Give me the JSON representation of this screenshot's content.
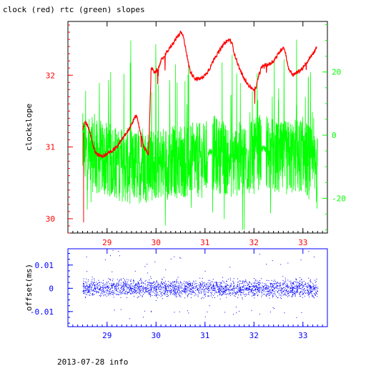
{
  "title": "clock (red) rtc (green) slopes",
  "footer": "2013-07-28 info",
  "colors": {
    "clock": "#ff0000",
    "rtc": "#00ff00",
    "offset": "#0000ff",
    "frame": "#000000"
  },
  "chart_data": [
    {
      "type": "line",
      "ylabel": "clockslope",
      "xlim": [
        28.2,
        33.5
      ],
      "x_ticks": [
        "29",
        "30",
        "31",
        "32",
        "33"
      ],
      "x_tick_values": [
        29,
        30,
        31,
        32,
        33
      ],
      "left_axis": {
        "ylim": [
          29.8,
          32.75
        ],
        "tick_values": [
          30,
          31,
          32
        ],
        "tick_labels": [
          "30",
          "31",
          "32"
        ]
      },
      "right_axis": {
        "ylim": [
          -31,
          36
        ],
        "tick_values": [
          -20,
          0,
          20
        ],
        "tick_labels": [
          "-20",
          "0",
          "20"
        ]
      },
      "series": [
        {
          "name": "clock",
          "axis": "left",
          "x": [
            28.5,
            28.52,
            28.55,
            28.6,
            28.65,
            28.7,
            28.75,
            28.8,
            28.85,
            28.9,
            28.95,
            29.0,
            29.1,
            29.2,
            29.3,
            29.4,
            29.5,
            29.55,
            29.6,
            29.65,
            29.7,
            29.75,
            29.8,
            29.85,
            29.9,
            29.92,
            29.95,
            30.0,
            30.05,
            30.1,
            30.2,
            30.3,
            30.4,
            30.5,
            30.55,
            30.6,
            30.65,
            30.7,
            30.8,
            30.9,
            31.0,
            31.1,
            31.2,
            31.3,
            31.4,
            31.5,
            31.55,
            31.6,
            31.7,
            31.8,
            31.9,
            32.0,
            32.05,
            32.1,
            32.15,
            32.2,
            32.3,
            32.4,
            32.5,
            32.55,
            32.6,
            32.65,
            32.7,
            32.8,
            32.9,
            33.0,
            33.1,
            33.2,
            33.25,
            33.28
          ],
          "y": [
            31.25,
            31.3,
            31.35,
            31.3,
            31.2,
            31.05,
            30.95,
            30.9,
            30.88,
            30.87,
            30.88,
            30.9,
            30.95,
            31.0,
            31.1,
            31.2,
            31.3,
            31.4,
            31.45,
            31.3,
            31.15,
            31.0,
            30.95,
            30.9,
            32.1,
            32.1,
            32.05,
            32.05,
            32.1,
            32.2,
            32.3,
            32.4,
            32.5,
            32.6,
            32.55,
            32.4,
            32.2,
            32.05,
            31.95,
            31.95,
            32.0,
            32.1,
            32.25,
            32.35,
            32.45,
            32.5,
            32.45,
            32.3,
            32.1,
            31.95,
            31.85,
            31.8,
            31.85,
            32.0,
            32.1,
            32.15,
            32.15,
            32.2,
            32.3,
            32.35,
            32.4,
            32.3,
            32.1,
            32.0,
            32.05,
            32.1,
            32.2,
            32.3,
            32.35,
            32.4
          ]
        },
        {
          "name": "rtc",
          "axis": "right",
          "x": [
            28.5,
            29.0,
            29.5,
            30.0,
            30.5,
            31.0,
            31.1,
            31.5,
            32.0,
            32.2,
            32.5,
            33.0,
            33.3
          ],
          "y": [
            -5,
            -8,
            -10,
            -9,
            -8,
            -8,
            -5,
            -8,
            -7,
            -4,
            -8,
            -6,
            -12
          ]
        }
      ]
    },
    {
      "type": "scatter",
      "ylabel": "offset(ms)",
      "xlim": [
        28.2,
        33.5
      ],
      "x_ticks": [
        "29",
        "30",
        "31",
        "32",
        "33"
      ],
      "x_tick_values": [
        29,
        30,
        31,
        32,
        33
      ],
      "ylim": [
        -0.0165,
        0.017
      ],
      "y_tick_values": [
        -0.01,
        0,
        0.01
      ],
      "y_tick_labels": [
        "-0.01",
        "0",
        "0.01"
      ],
      "series": [
        {
          "name": "offset",
          "x_range": [
            28.5,
            33.3
          ],
          "y_mean": 0.0,
          "y_spread": 0.004
        }
      ]
    }
  ]
}
